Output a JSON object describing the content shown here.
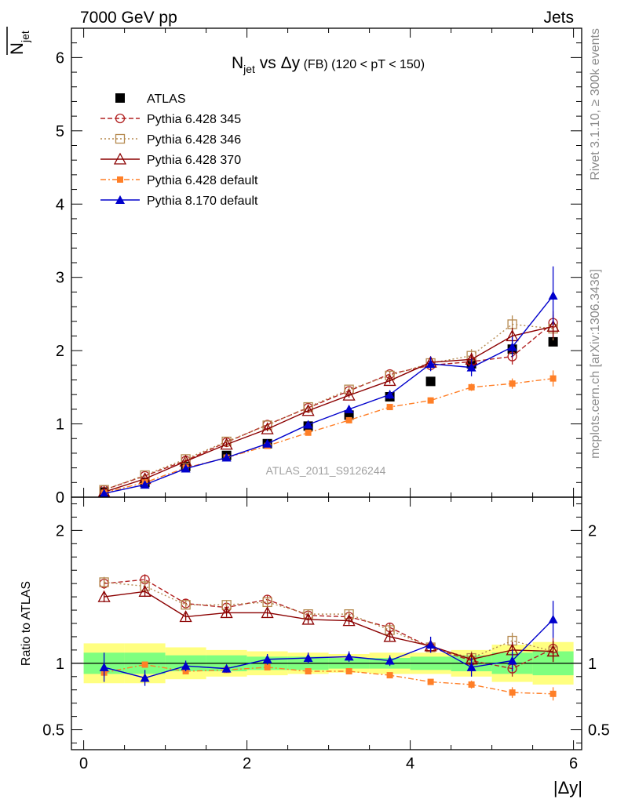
{
  "header": {
    "left": "7000 GeV pp",
    "right": "Jets"
  },
  "side_text": {
    "rivet": "Rivet 3.1.10, ≥ 300k events",
    "mcplots": "mcplots.cern.ch [arXiv:1306.3436]"
  },
  "watermark": "ATLAS_2011_S9126244",
  "chart_data": {
    "type": "line",
    "title": {
      "main": "N",
      "main_sub": "jet",
      "vs": " vs Δy",
      "fb": " (FB)",
      "range": " (120 < pT < 150)"
    },
    "ylabel": {
      "main": "N",
      "sub": "jet"
    },
    "xlabel": "|Δy|",
    "ratio_ylabel": "Ratio to ATLAS",
    "xlim": [
      -0.15,
      6.1
    ],
    "ylim": [
      0,
      6.4
    ],
    "ratio_ylim": [
      0.35,
      2.25
    ],
    "x_ticks": [
      "0",
      "2",
      "4",
      "6"
    ],
    "y_ticks": [
      "0",
      "1",
      "2",
      "3",
      "4",
      "5",
      "6"
    ],
    "ratio_ticks": [
      "0.5",
      "1",
      "2"
    ],
    "legend": {
      "placement": "top-left"
    },
    "x": [
      0.25,
      0.75,
      1.25,
      1.75,
      2.25,
      2.75,
      3.25,
      3.75,
      4.25,
      4.75,
      5.25,
      5.75
    ],
    "band": {
      "green": [
        0.08,
        0.08,
        0.06,
        0.06,
        0.05,
        0.05,
        0.04,
        0.04,
        0.05,
        0.06,
        0.08,
        0.09
      ],
      "yellow": [
        0.15,
        0.15,
        0.12,
        0.1,
        0.09,
        0.08,
        0.07,
        0.08,
        0.08,
        0.1,
        0.14,
        0.16
      ],
      "green_color": "#7fff7f",
      "yellow_color": "#ffff80"
    },
    "series": [
      {
        "name": "ATLAS",
        "color": "#000000",
        "marker": "square-filled",
        "line": "none",
        "values": [
          0.07,
          0.2,
          0.42,
          0.57,
          0.73,
          0.97,
          1.12,
          1.37,
          1.58,
          1.82,
          2.02,
          2.12
        ]
      },
      {
        "name": "Pythia 6.428 345",
        "color": "#b22222",
        "marker": "circle-open",
        "line": "dashed",
        "values": [
          0.1,
          0.29,
          0.5,
          0.75,
          0.99,
          1.22,
          1.45,
          1.68,
          1.8,
          1.85,
          1.92,
          2.38
        ],
        "err": [
          0.01,
          0.02,
          0.02,
          0.03,
          0.03,
          0.03,
          0.03,
          0.04,
          0.07,
          0.09,
          0.11,
          0.16
        ],
        "ratio": [
          1.6,
          1.63,
          1.45,
          1.42,
          1.48,
          1.36,
          1.35,
          1.27,
          1.12,
          1.02,
          0.96,
          1.11
        ],
        "ratio_err": [
          0.04,
          0.04,
          0.03,
          0.03,
          0.03,
          0.03,
          0.03,
          0.03,
          0.04,
          0.05,
          0.06,
          0.08
        ]
      },
      {
        "name": "Pythia 6.428 346",
        "color": "#b5894f",
        "marker": "square-open",
        "line": "dotted",
        "values": [
          0.1,
          0.3,
          0.52,
          0.76,
          0.98,
          1.23,
          1.47,
          1.66,
          1.83,
          1.93,
          2.36,
          2.3
        ],
        "err": [
          0.01,
          0.02,
          0.02,
          0.03,
          0.03,
          0.03,
          0.03,
          0.04,
          0.07,
          0.09,
          0.12,
          0.16
        ],
        "ratio": [
          1.61,
          1.58,
          1.44,
          1.44,
          1.46,
          1.37,
          1.37,
          1.25,
          1.12,
          1.04,
          1.17,
          1.09
        ],
        "ratio_err": [
          0.04,
          0.04,
          0.03,
          0.03,
          0.03,
          0.03,
          0.03,
          0.03,
          0.04,
          0.05,
          0.06,
          0.08
        ]
      },
      {
        "name": "Pythia 6.428 370",
        "color": "#8b0000",
        "marker": "triangle-open",
        "line": "solid",
        "values": [
          0.07,
          0.25,
          0.49,
          0.72,
          0.93,
          1.18,
          1.39,
          1.59,
          1.84,
          1.88,
          2.2,
          2.33
        ],
        "err": [
          0.01,
          0.02,
          0.02,
          0.03,
          0.03,
          0.03,
          0.03,
          0.04,
          0.07,
          0.09,
          0.11,
          0.16
        ],
        "ratio": [
          1.5,
          1.54,
          1.35,
          1.38,
          1.38,
          1.33,
          1.32,
          1.2,
          1.13,
          1.03,
          1.1,
          1.09
        ],
        "ratio_err": [
          0.04,
          0.04,
          0.03,
          0.03,
          0.03,
          0.03,
          0.03,
          0.03,
          0.04,
          0.05,
          0.06,
          0.08
        ]
      },
      {
        "name": "Pythia 6.428 default",
        "color": "#ff7f27",
        "marker": "square-filled-small",
        "line": "dashdot",
        "values": [
          0.06,
          0.2,
          0.4,
          0.54,
          0.7,
          0.88,
          1.05,
          1.23,
          1.32,
          1.5,
          1.55,
          1.62
        ],
        "err": [
          0.01,
          0.01,
          0.02,
          0.02,
          0.02,
          0.02,
          0.03,
          0.03,
          0.04,
          0.05,
          0.07,
          0.11
        ],
        "ratio": [
          0.93,
          0.99,
          0.94,
          0.95,
          0.97,
          0.94,
          0.94,
          0.91,
          0.86,
          0.84,
          0.78,
          0.77
        ],
        "ratio_err": [
          0.03,
          0.02,
          0.02,
          0.02,
          0.02,
          0.02,
          0.02,
          0.02,
          0.02,
          0.03,
          0.04,
          0.05
        ]
      },
      {
        "name": "Pythia 8.170 default",
        "color": "#0000cc",
        "marker": "triangle-filled",
        "line": "solid",
        "values": [
          0.05,
          0.17,
          0.39,
          0.54,
          0.73,
          0.99,
          1.2,
          1.4,
          1.82,
          1.77,
          2.05,
          2.75
        ],
        "err": [
          0.01,
          0.01,
          0.02,
          0.02,
          0.03,
          0.03,
          0.04,
          0.06,
          0.1,
          0.12,
          0.14,
          0.4
        ],
        "ratio": [
          0.97,
          0.89,
          0.98,
          0.96,
          1.03,
          1.04,
          1.05,
          1.02,
          1.14,
          0.97,
          1.02,
          1.33
        ],
        "ratio_err": [
          0.11,
          0.06,
          0.04,
          0.03,
          0.04,
          0.04,
          0.04,
          0.04,
          0.06,
          0.07,
          0.08,
          0.14
        ]
      }
    ]
  }
}
